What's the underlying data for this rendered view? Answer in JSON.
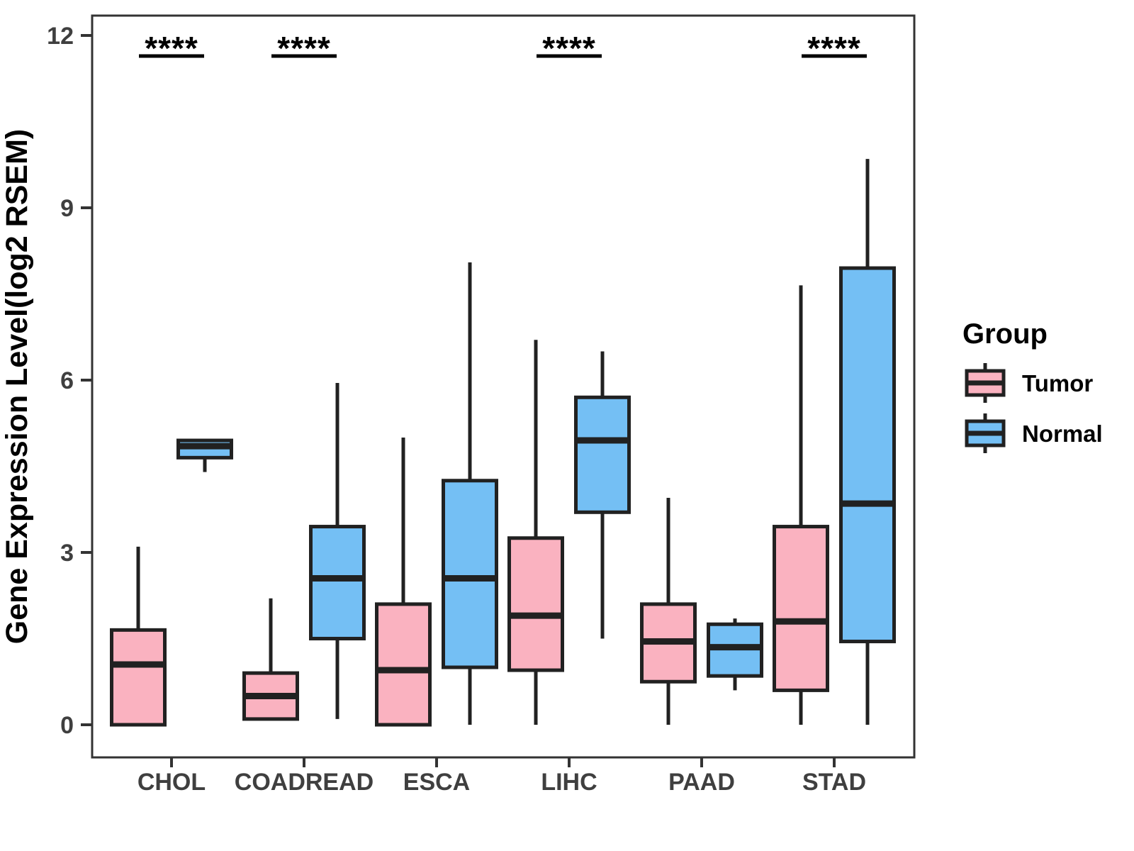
{
  "legend": {
    "title": "Group",
    "items": [
      {
        "label": "Tumor",
        "color": "#FAB2C0"
      },
      {
        "label": "Normal",
        "color": "#74BFF4"
      }
    ]
  },
  "chart_data": {
    "type": "boxplot",
    "title": "",
    "ylabel": "Gene Expression Level(log2 RSEM)",
    "xlabel": "",
    "ylim": [
      0,
      12
    ],
    "yticks": [
      0,
      3,
      6,
      9,
      12
    ],
    "grid": false,
    "legend_position": "right",
    "panel_border_color": "#333333",
    "box_stroke_color": "#212121",
    "categories": [
      "CHOL",
      "COADREAD",
      "ESCA",
      "LIHC",
      "PAAD",
      "STAD"
    ],
    "groups": [
      {
        "name": "Tumor",
        "color": "#FAB2C0"
      },
      {
        "name": "Normal",
        "color": "#74BFF4"
      }
    ],
    "series": [
      {
        "name": "Tumor",
        "boxes": [
          {
            "category": "CHOL",
            "low": 0.0,
            "q1": 0.0,
            "median": 1.05,
            "q3": 1.65,
            "high": 3.1
          },
          {
            "category": "COADREAD",
            "low": 0.1,
            "q1": 0.1,
            "median": 0.5,
            "q3": 0.9,
            "high": 2.2
          },
          {
            "category": "ESCA",
            "low": 0.0,
            "q1": 0.0,
            "median": 0.95,
            "q3": 2.1,
            "high": 5.0
          },
          {
            "category": "LIHC",
            "low": 0.0,
            "q1": 0.95,
            "median": 1.9,
            "q3": 3.25,
            "high": 6.7
          },
          {
            "category": "PAAD",
            "low": 0.0,
            "q1": 0.75,
            "median": 1.45,
            "q3": 2.1,
            "high": 3.95
          },
          {
            "category": "STAD",
            "low": 0.0,
            "q1": 0.6,
            "median": 1.8,
            "q3": 3.45,
            "high": 7.65
          }
        ]
      },
      {
        "name": "Normal",
        "boxes": [
          {
            "category": "CHOL",
            "low": 4.4,
            "q1": 4.65,
            "median": 4.85,
            "q3": 4.95,
            "high": 4.95
          },
          {
            "category": "COADREAD",
            "low": 0.1,
            "q1": 1.5,
            "median": 2.55,
            "q3": 3.45,
            "high": 5.95
          },
          {
            "category": "ESCA",
            "low": 0.0,
            "q1": 1.0,
            "median": 2.55,
            "q3": 4.25,
            "high": 8.05
          },
          {
            "category": "LIHC",
            "low": 1.5,
            "q1": 3.7,
            "median": 4.95,
            "q3": 5.7,
            "high": 6.5
          },
          {
            "category": "PAAD",
            "low": 0.6,
            "q1": 0.85,
            "median": 1.35,
            "q3": 1.75,
            "high": 1.85
          },
          {
            "category": "STAD",
            "low": 0.0,
            "q1": 1.45,
            "median": 3.85,
            "q3": 7.95,
            "high": 9.85
          }
        ]
      }
    ],
    "significance": [
      {
        "category": "CHOL",
        "label": "****"
      },
      {
        "category": "COADREAD",
        "label": "****"
      },
      {
        "category": "LIHC",
        "label": "****"
      },
      {
        "category": "STAD",
        "label": "****"
      }
    ]
  }
}
